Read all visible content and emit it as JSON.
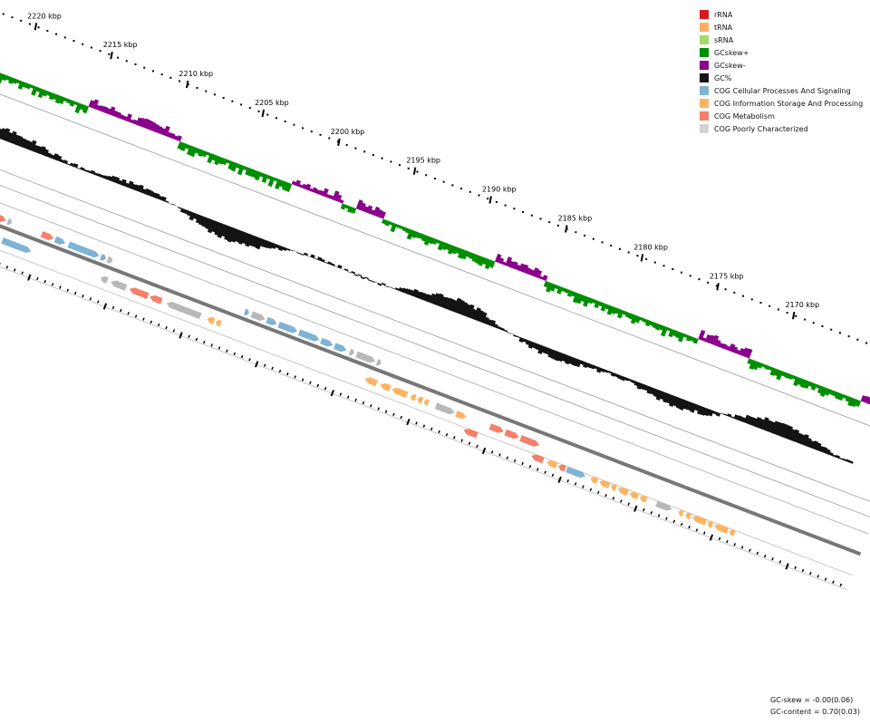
{
  "legend": [
    {
      "label": "rRNA",
      "color": "#d7191c"
    },
    {
      "label": "tRNA",
      "color": "#fdae61"
    },
    {
      "label": "sRNA",
      "color": "#a6d96a"
    },
    {
      "label": "GCskew+",
      "color": "#008f00"
    },
    {
      "label": "GCskew-",
      "color": "#8b008b"
    },
    {
      "label": "GC%",
      "color": "#141414"
    },
    {
      "label": "COG Cellular Processes And Signaling",
      "color": "#7fb2d5"
    },
    {
      "label": "COG Information Storage And Processing",
      "color": "#fdb462"
    },
    {
      "label": "COG Metabolism",
      "color": "#f4806a"
    },
    {
      "label": "COG Poorly Characterized",
      "color": "#d3d3d3"
    }
  ],
  "ticks": [
    {
      "label": "2220 kbp"
    },
    {
      "label": "2215 kbp"
    },
    {
      "label": "2210 kbp"
    },
    {
      "label": "2205 kbp"
    },
    {
      "label": "2200 kbp"
    },
    {
      "label": "2195 kbp"
    },
    {
      "label": "2190 kbp"
    },
    {
      "label": "2185 kbp"
    },
    {
      "label": "2180 kbp"
    },
    {
      "label": "2175 kbp"
    },
    {
      "label": "2170 kbp"
    }
  ],
  "stats": {
    "gc_skew": "GC-skew = -0.00(0.06)",
    "gc_content": "GC-content = 0.70(0.03)"
  },
  "colors": {
    "gc_content": "#141414",
    "gc_skew_pos": "#008f00",
    "gc_skew_neg": "#8b008b",
    "backbone": "#777777"
  }
}
